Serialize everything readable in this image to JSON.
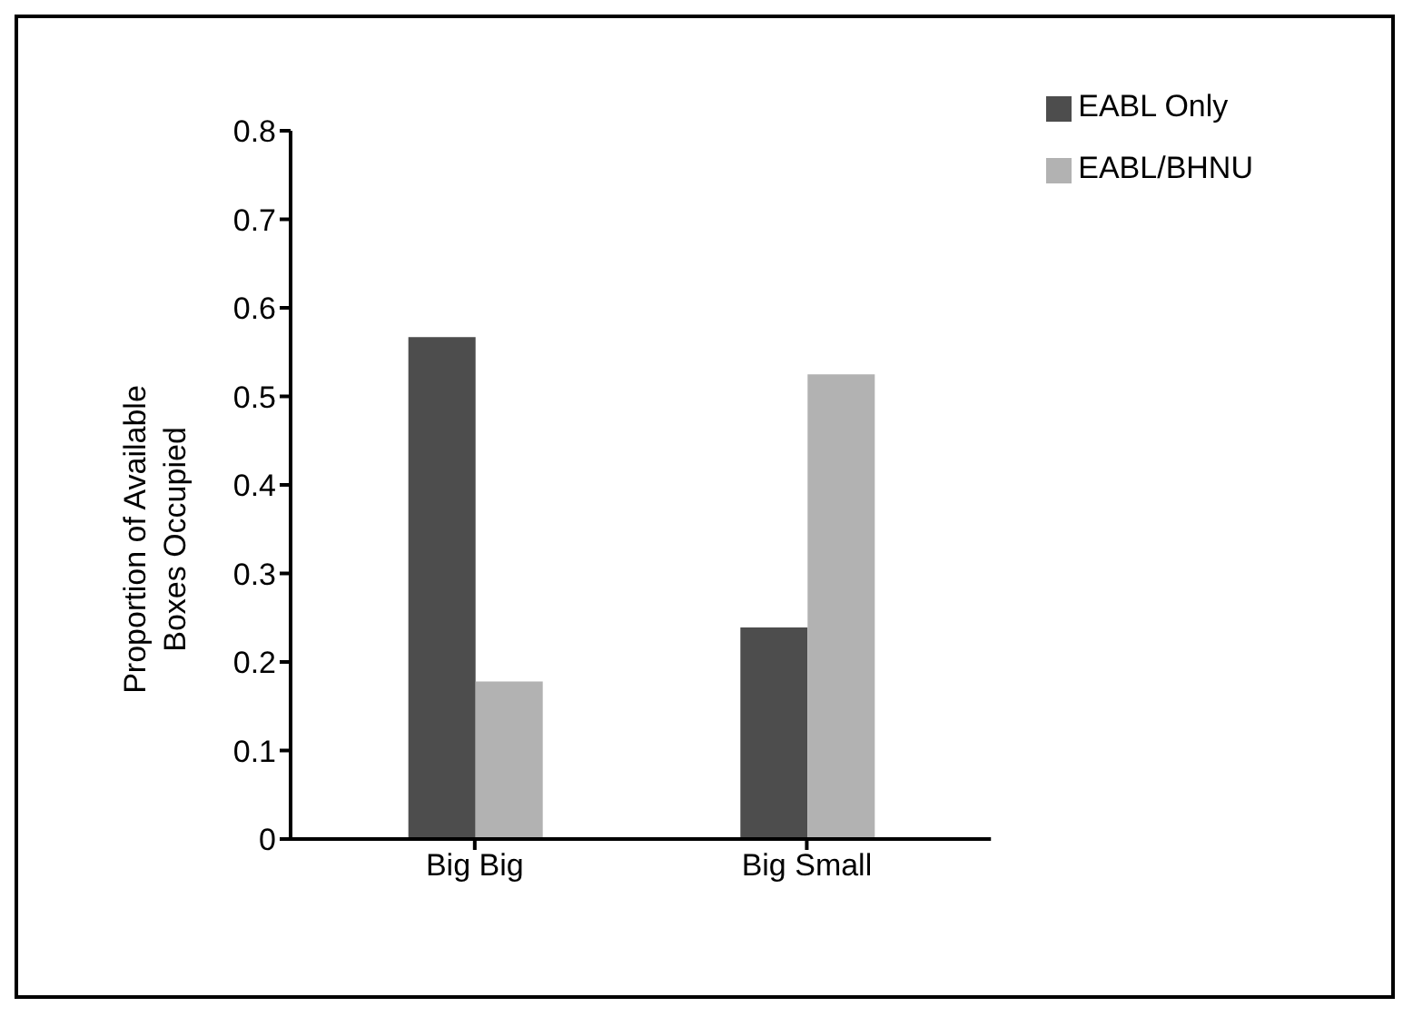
{
  "chart_data": {
    "type": "bar",
    "ylabel": "Proportion of Available Boxes Occupied",
    "categories": [
      "Big Big",
      "Big Small"
    ],
    "series": [
      {
        "name": "EABL Only",
        "color": "#4d4d4d",
        "values": [
          0.567,
          0.239
        ]
      },
      {
        "name": "EABL/BHNU",
        "color": "#b2b2b2",
        "values": [
          0.178,
          0.525
        ]
      }
    ],
    "ylim": [
      0,
      0.8
    ],
    "yticks": [
      0,
      0.1,
      0.2,
      0.3,
      0.4,
      0.5,
      0.6,
      0.7,
      0.8
    ],
    "grid": false,
    "legend": "top right"
  }
}
